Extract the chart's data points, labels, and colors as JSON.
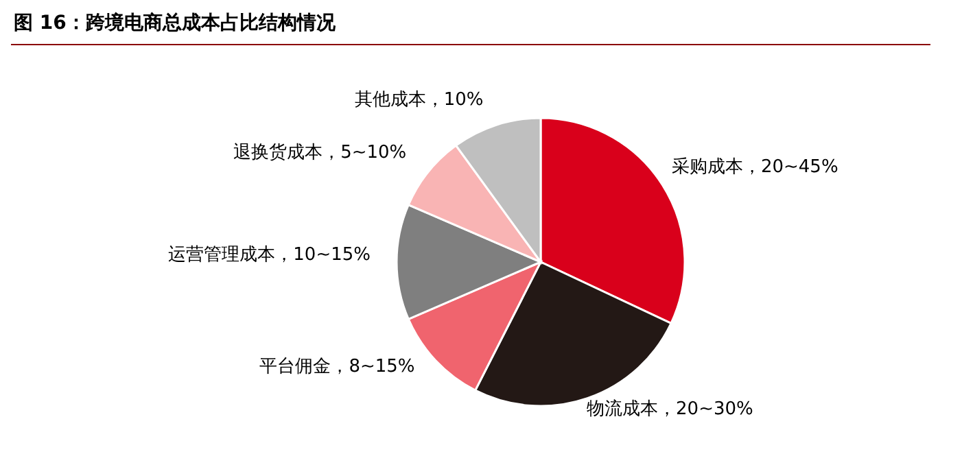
{
  "chart_data": {
    "type": "pie",
    "title": "图 16：跨境电商总成本占比结构情况",
    "categories": [
      "采购成本，20~45%",
      "物流成本，20~30%",
      "平台佣金，8~15%",
      "运营管理成本，10~15%",
      "退换货成本，5~10%",
      "其他成本，10%"
    ],
    "values": [
      32,
      25.5,
      11,
      13,
      8.5,
      10
    ],
    "colors": [
      "#d9001b",
      "#231815",
      "#f0646e",
      "#7f7f7f",
      "#f9b4b4",
      "#bfbfbf"
    ],
    "legend": false
  }
}
